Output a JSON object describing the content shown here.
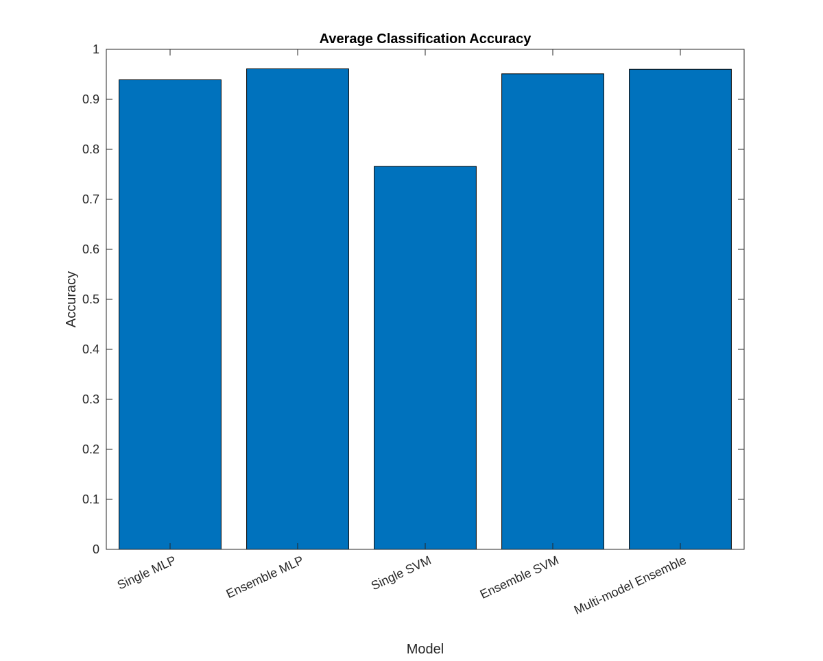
{
  "chart_data": {
    "type": "bar",
    "title": "Average Classification Accuracy",
    "xlabel": "Model",
    "ylabel": "Accuracy",
    "categories": [
      "Single MLP",
      "Ensemble MLP",
      "Single SVM",
      "Ensemble SVM",
      "Multi-model Ensemble"
    ],
    "values": [
      0.939,
      0.961,
      0.766,
      0.951,
      0.96
    ],
    "ylim": [
      0,
      1
    ],
    "yticks": [
      "0",
      "0.1",
      "0.2",
      "0.3",
      "0.4",
      "0.5",
      "0.6",
      "0.7",
      "0.8",
      "0.9",
      "1"
    ],
    "grid": false,
    "legend": "none",
    "bar_color": "#0072BD",
    "bar_edge_color": "#000000",
    "axis_color": "#262626"
  }
}
